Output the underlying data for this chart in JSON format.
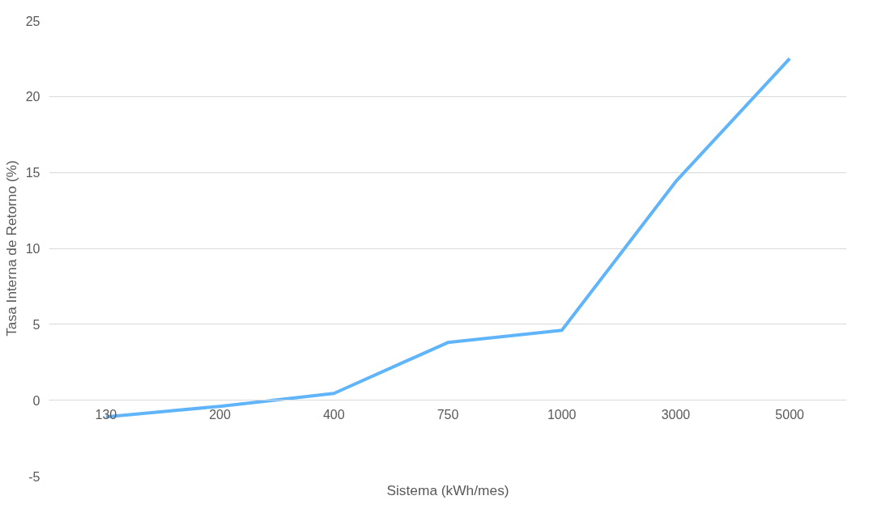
{
  "chart_data": {
    "type": "line",
    "xlabel": "Sistema (kWh/mes)",
    "ylabel": "Tasa Interna de Retorno (%)",
    "categories": [
      "130",
      "200",
      "400",
      "750",
      "1000",
      "3000",
      "5000"
    ],
    "series": [
      {
        "color": "#5fb4fa",
        "values": [
          -1.1,
          -0.4,
          0.45,
          3.8,
          4.6,
          14.4,
          22.5
        ]
      }
    ],
    "ylim": [
      -5,
      25
    ],
    "yticks": [
      -5,
      0,
      5,
      10,
      15,
      20,
      25
    ],
    "grid": "y",
    "marker": "none",
    "line_style": "solid"
  }
}
